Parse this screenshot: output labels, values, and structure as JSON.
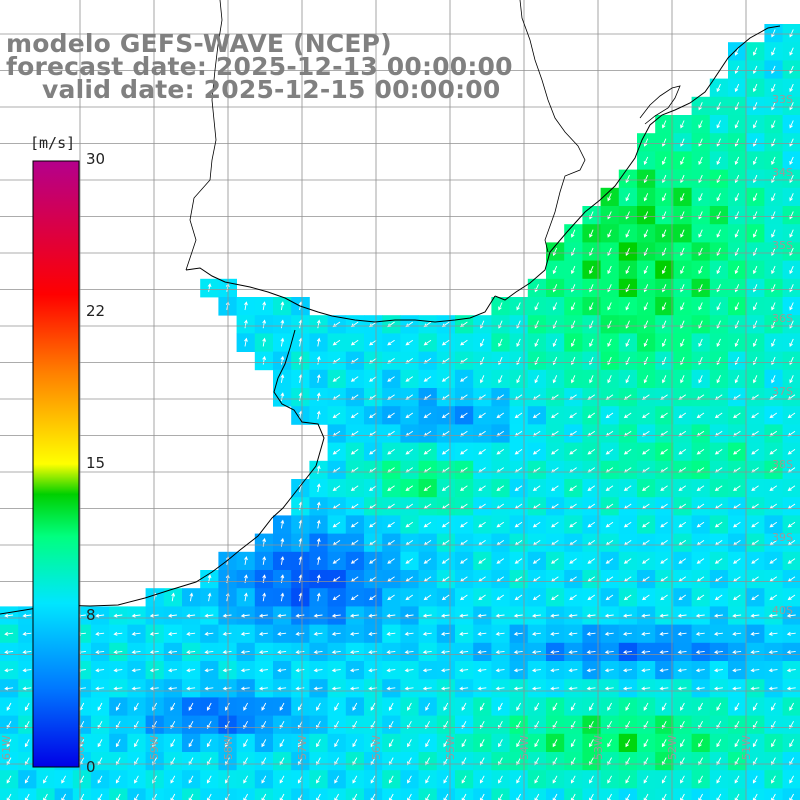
{
  "title": {
    "model": "modelo GEFS-WAVE (NCEP)",
    "forecast": "forecast date: 2025-12-13 00:00:00",
    "valid": "valid date: 2025-12-15 00:00:00"
  },
  "colorbar": {
    "units": "[m/s]",
    "ticks": [
      "30",
      "22",
      "15",
      "8",
      "0"
    ],
    "tick_values": [
      30,
      22,
      15,
      8,
      0
    ],
    "range": [
      0,
      30
    ],
    "colors": [
      "#0000e6",
      "#0078ff",
      "#00e6ff",
      "#00ff80",
      "#00d000",
      "#c8ff00",
      "#ffff00",
      "#ff8000",
      "#ff0000",
      "#b4008c"
    ]
  },
  "map": {
    "lon_range": [
      -63,
      -42
    ],
    "lat_range": [
      -41,
      -30
    ],
    "grid_lon_step": 1,
    "grid_lat_step": 0.5,
    "lat_labels": [
      "33S",
      "34S",
      "35S",
      "36S",
      "37S",
      "38S",
      "39S",
      "40S"
    ],
    "lon_labels": [
      "61W",
      "60W",
      "59W",
      "58W",
      "57W",
      "56W",
      "55W",
      "54W",
      "53W",
      "52W",
      "51W",
      "50W"
    ],
    "land_color": "#ffffff",
    "coastline_color": "#000000",
    "grid_color": "#909090",
    "arrow_color": "#ffffff"
  }
}
